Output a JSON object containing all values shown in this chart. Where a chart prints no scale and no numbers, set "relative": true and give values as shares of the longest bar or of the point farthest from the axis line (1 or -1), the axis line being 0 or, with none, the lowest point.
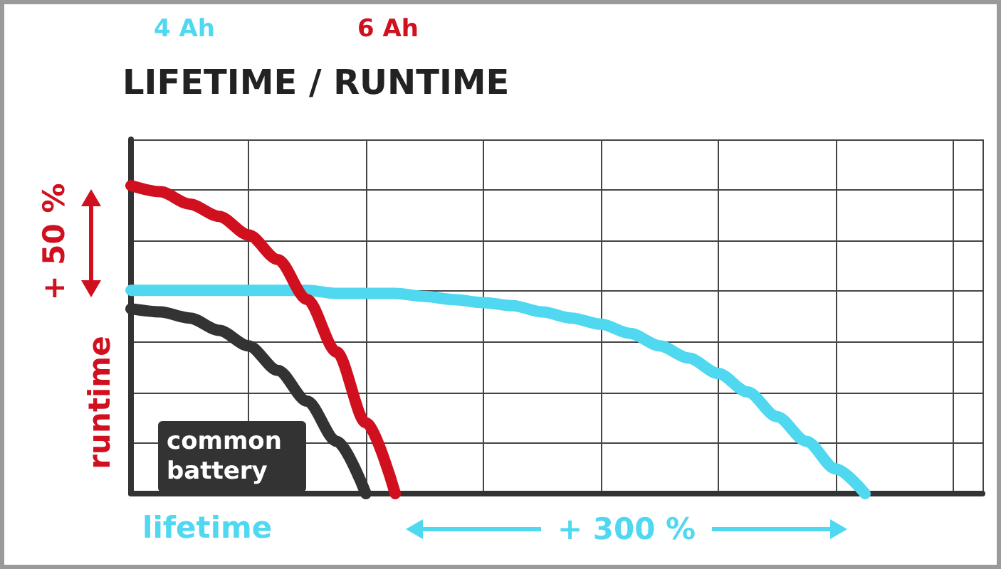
{
  "chart_data": {
    "type": "line",
    "title": "LIFETIME / RUNTIME",
    "xlabel": "lifetime",
    "ylabel": "runtime",
    "relative": true,
    "grid": true,
    "legend": "top left",
    "categories": [
      null,
      null,
      null,
      null,
      null,
      null,
      null,
      null,
      null,
      null,
      null,
      null,
      null,
      null,
      null,
      null,
      null,
      null,
      null,
      null,
      null,
      null,
      null,
      null,
      null,
      null,
      null,
      null,
      null,
      null
    ],
    "series": [
      {
        "name": "4 Ah",
        "color": "#4fd8f0",
        "values": [
          0.66,
          0.66,
          0.66,
          0.66,
          0.66,
          0.66,
          0.66,
          0.65,
          0.65,
          0.65,
          0.64,
          0.63,
          0.62,
          0.61,
          0.59,
          0.57,
          0.55,
          0.52,
          0.48,
          0.44,
          0.39,
          0.33,
          0.25,
          0.17,
          0.08,
          0,
          null,
          null,
          null,
          null
        ]
      },
      {
        "name": "6 Ah",
        "color": "#d0101e",
        "values": [
          1,
          0.98,
          0.94,
          0.9,
          0.84,
          0.76,
          0.63,
          0.46,
          0.23,
          0,
          null,
          null,
          null,
          null,
          null,
          null,
          null,
          null,
          null,
          null,
          null,
          null,
          null,
          null,
          null,
          null,
          null,
          null,
          null,
          null
        ]
      },
      {
        "name": "common battery",
        "color": "#333333",
        "values": [
          0.6,
          0.59,
          0.57,
          0.53,
          0.48,
          0.4,
          0.3,
          0.17,
          0,
          null,
          null,
          null,
          null,
          null,
          null,
          null,
          null,
          null,
          null,
          null,
          null,
          null,
          null,
          null,
          null,
          null,
          null,
          null,
          null,
          null
        ]
      }
    ],
    "annotations": [
      "+ 50 %",
      "+ 300 %"
    ]
  }
}
